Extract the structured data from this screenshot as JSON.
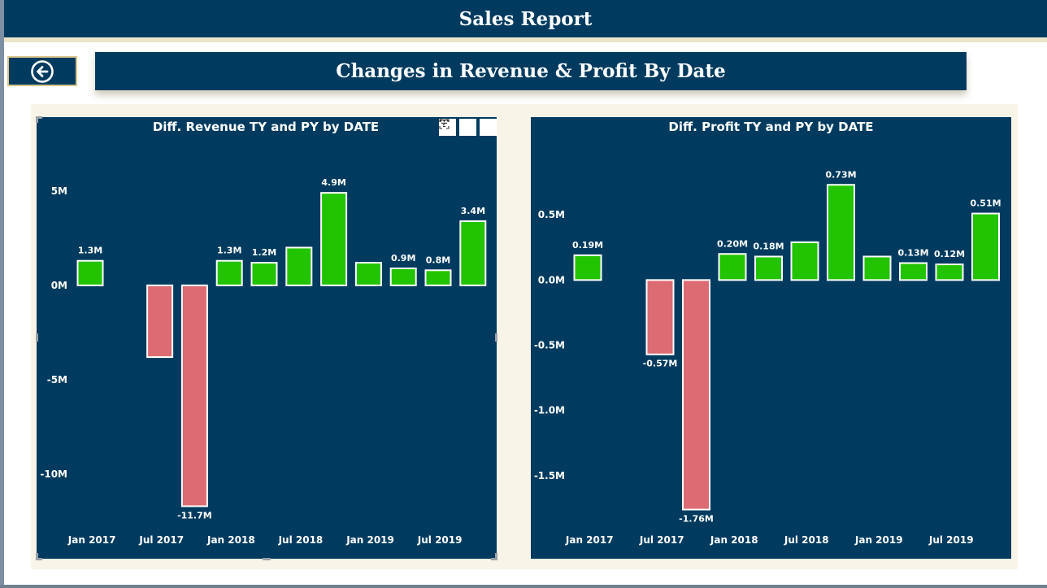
{
  "header": {
    "title": "Sales Report"
  },
  "subheader": {
    "title": "Changes in Revenue & Profit By Date"
  },
  "back_button": {
    "icon": "arrow-left-circle-icon"
  },
  "colors": {
    "navy": "#003b5f",
    "positive": "#22c300",
    "negative": "#dc6b73",
    "white": "#ffffff"
  },
  "visual_header_icons": [
    "filter-icon",
    "focus-mode-icon",
    "more-options-icon"
  ],
  "chart_data": [
    {
      "type": "bar",
      "title": "Diff. Revenue TY and PY by DATE",
      "x_tick_labels": [
        "Jan 2017",
        "Jul 2017",
        "Jan 2018",
        "Jul 2018",
        "Jan 2019",
        "Jul 2019"
      ],
      "y_tick_labels": [
        "5M",
        "0M",
        "-5M",
        "-10M"
      ],
      "y_ticks": [
        5,
        0,
        -5,
        -10
      ],
      "ylim": [
        -12.5,
        6.5
      ],
      "unit": "M",
      "values": [
        1.3,
        null,
        -3.8,
        -11.7,
        1.3,
        1.2,
        2.0,
        4.9,
        1.2,
        0.9,
        0.8,
        3.4
      ],
      "data_labels": [
        "1.3M",
        "",
        "",
        "-11.7M",
        "1.3M",
        "1.2M",
        "",
        "4.9M",
        "",
        "0.9M",
        "0.8M",
        "3.4M"
      ],
      "grid": false
    },
    {
      "type": "bar",
      "title": "Diff. Profit TY and PY by DATE",
      "x_tick_labels": [
        "Jan 2017",
        "Jul 2017",
        "Jan 2018",
        "Jul 2018",
        "Jan 2019",
        "Jul 2019"
      ],
      "y_tick_labels": [
        "0.5M",
        "0.0M",
        "-0.5M",
        "-1.0M",
        "-1.5M"
      ],
      "y_ticks": [
        0.5,
        0,
        -0.5,
        -1.0,
        -1.5
      ],
      "ylim": [
        -1.85,
        0.9
      ],
      "unit": "M",
      "values": [
        0.19,
        null,
        -0.57,
        -1.76,
        0.2,
        0.18,
        0.29,
        0.73,
        0.18,
        0.13,
        0.12,
        0.51
      ],
      "data_labels": [
        "0.19M",
        "",
        "-0.57M",
        "-1.76M",
        "0.20M",
        "0.18M",
        "",
        "0.73M",
        "",
        "0.13M",
        "0.12M",
        "0.51M"
      ],
      "grid": false
    }
  ]
}
